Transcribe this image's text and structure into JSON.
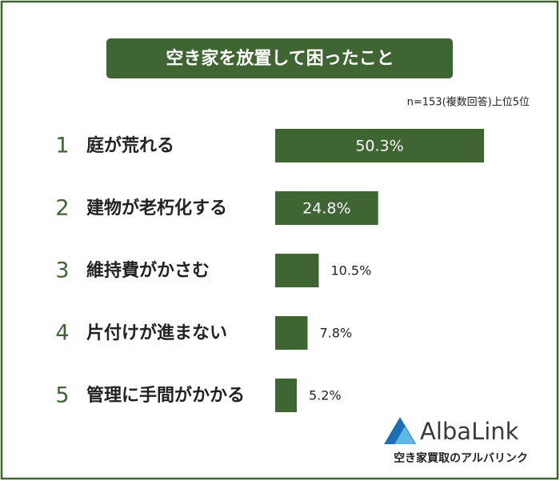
{
  "chart_data": {
    "type": "bar",
    "orientation": "horizontal",
    "title": "空き家を放置して困ったこと",
    "subtitle": "n=153(複数回答)上位5位",
    "ranks": [
      1,
      2,
      3,
      4,
      5
    ],
    "categories": [
      "庭が荒れる",
      "建物が老朽化する",
      "維持費がかさむ",
      "片付けが進まない",
      "管理に手間がかかる"
    ],
    "values": [
      50.3,
      24.8,
      10.5,
      7.8,
      5.2
    ],
    "value_labels": [
      "50.3%",
      "24.8%",
      "10.5%",
      "7.8%",
      "5.2%"
    ],
    "color": "#3e6532"
  },
  "logo": {
    "name": "AlbaLink",
    "tagline": "空き家買取のアルバリンク"
  }
}
